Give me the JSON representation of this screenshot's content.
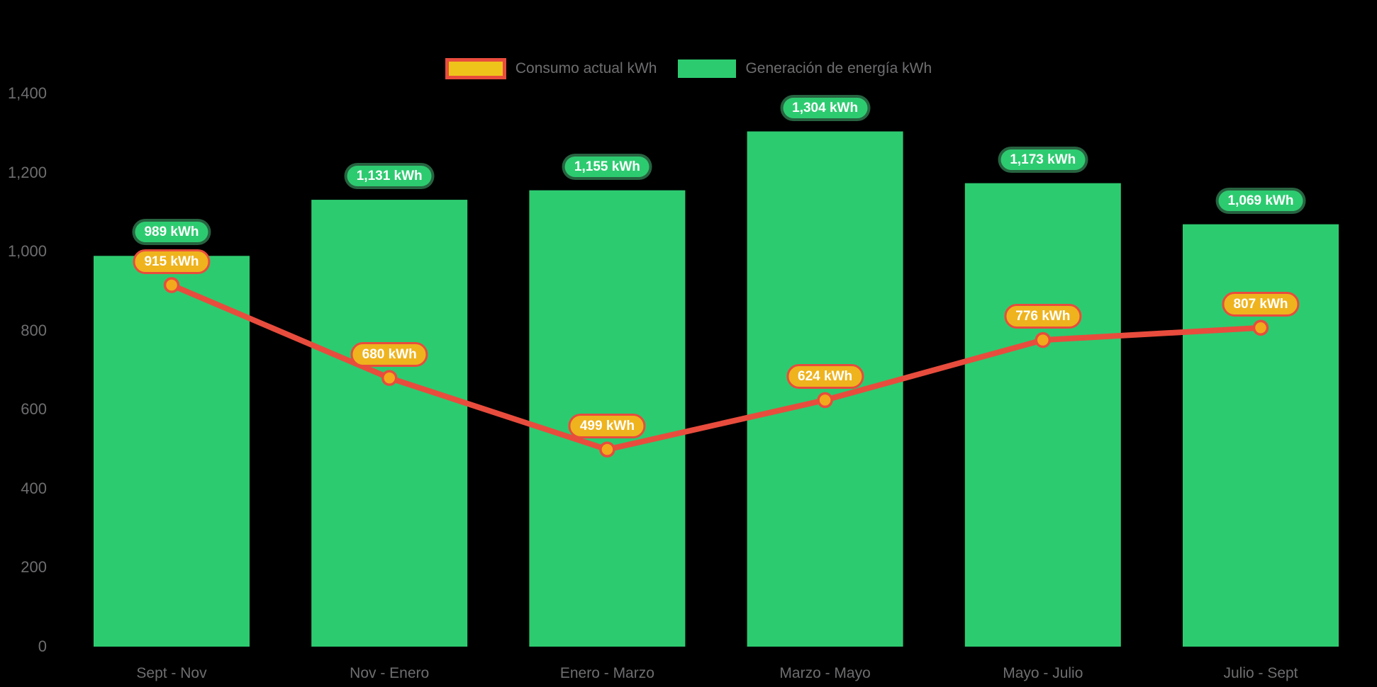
{
  "colors": {
    "background": "#000000",
    "bar_green": "#2dcb70",
    "green_pill": "#2dcb70",
    "line_red": "#e84c3d",
    "marker_fill": "#f2a91c",
    "pill_orange": "#efb31d",
    "legend_yellow": "#efc41a",
    "axis_text_gray": "#6e6e71",
    "pill_text": "#ffffff"
  },
  "chart_data": {
    "type": "bar",
    "subtype": "bar-with-line-overlay",
    "categories": [
      "Sept - Nov",
      "Nov - Enero",
      "Enero - Marzo",
      "Marzo - Mayo",
      "Mayo - Julio",
      "Julio - Sept"
    ],
    "series": [
      {
        "name": "Consumo actual kWh",
        "type": "line",
        "color": "#e84c3d",
        "values": [
          915,
          680,
          499,
          624,
          776,
          807
        ],
        "labels": [
          "915 kWh",
          "680 kWh",
          "499 kWh",
          "624 kWh",
          "776 kWh",
          "807 kWh"
        ]
      },
      {
        "name": "Generación de energía kWh",
        "type": "bar",
        "color": "#2dcb70",
        "values": [
          989,
          1131,
          1155,
          1304,
          1173,
          1069
        ],
        "labels": [
          "989 kWh",
          "1,131 kWh",
          "1,155 kWh",
          "1,304 kWh",
          "1,173 kWh",
          "1,069 kWh"
        ]
      }
    ],
    "title": "",
    "xlabel": "",
    "ylabel": "",
    "ylim": [
      0,
      1400
    ],
    "yticks": [
      0,
      200,
      400,
      600,
      800,
      1000,
      1200,
      1400
    ],
    "ytick_labels": [
      "0",
      "200",
      "400",
      "600",
      "800",
      "1,000",
      "1,200",
      "1,400"
    ],
    "grid": false,
    "legend_position": "top-center"
  }
}
